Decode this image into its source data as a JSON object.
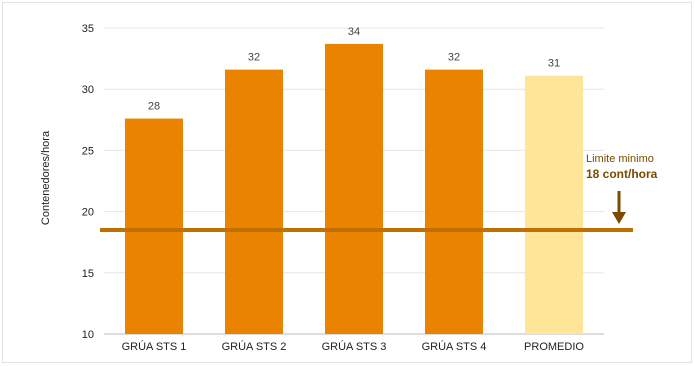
{
  "chart_data": {
    "type": "bar",
    "title": "",
    "xlabel": "",
    "ylabel": "Contenedores/hora",
    "ylim": [
      10,
      35
    ],
    "yticks": [
      10,
      15,
      20,
      25,
      30,
      35
    ],
    "grid": true,
    "categories": [
      "GRÚA STS 1",
      "GRÚA STS 2",
      "GRÚA STS 3",
      "GRÚA STS 4",
      "PROMEDIO"
    ],
    "values": [
      27.6,
      31.6,
      33.7,
      31.6,
      31.1
    ],
    "data_labels": [
      "28",
      "32",
      "34",
      "32",
      "31"
    ],
    "bar_colors": [
      "#ea8300",
      "#ea8300",
      "#ea8300",
      "#ea8300",
      "#ffe598"
    ],
    "reference_line": {
      "value": 18.5,
      "color": "#c07000"
    },
    "annotation": {
      "line1": "Limite minimo",
      "line2": "18 cont/hora"
    }
  }
}
